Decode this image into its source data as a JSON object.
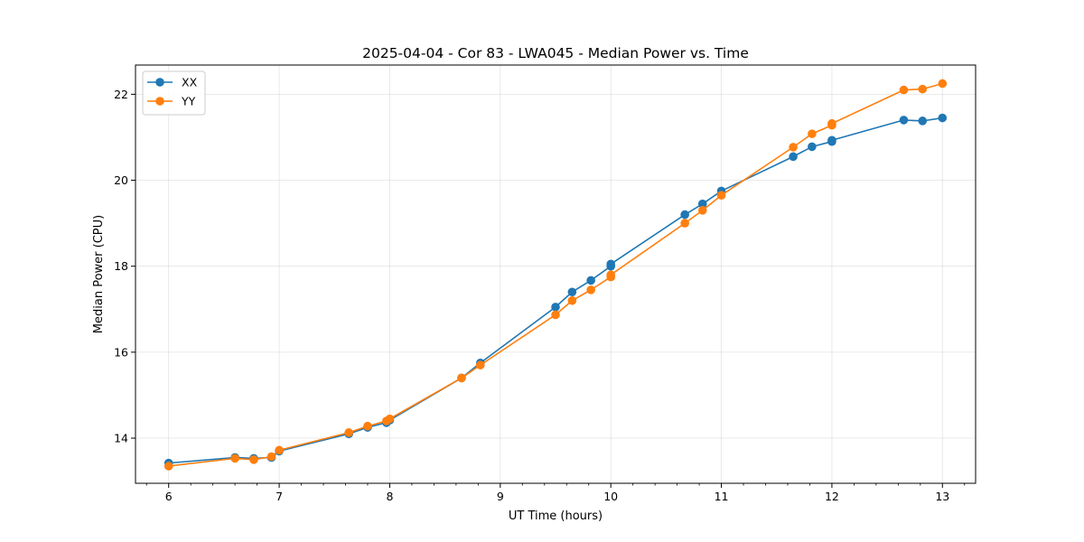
{
  "chart_data": {
    "type": "line",
    "title": "2025-04-04 - Cor 83 - LWA045 - Median Power vs. Time",
    "xlabel": "UT Time (hours)",
    "ylabel": "Median Power (CPU)",
    "xlim": [
      5.7,
      13.3
    ],
    "ylim": [
      12.95,
      22.68
    ],
    "xticks": [
      6,
      7,
      8,
      9,
      10,
      11,
      12,
      13
    ],
    "yticks": [
      14,
      16,
      18,
      20,
      22
    ],
    "grid": true,
    "legend_position": "top-left",
    "series": [
      {
        "name": "XX",
        "color": "#1f77b4",
        "x": [
          6.0,
          6.6,
          6.77,
          6.93,
          7.0,
          7.63,
          7.8,
          7.97,
          8.0,
          8.65,
          8.82,
          9.5,
          9.65,
          9.82,
          10.0,
          10.0,
          10.67,
          10.83,
          11.0,
          11.65,
          11.82,
          12.0,
          12.0,
          12.65,
          12.82,
          13.0
        ],
        "y": [
          13.42,
          13.55,
          13.53,
          13.55,
          13.7,
          14.1,
          14.25,
          14.36,
          14.42,
          15.4,
          15.75,
          17.05,
          17.4,
          17.67,
          18.0,
          18.05,
          19.2,
          19.45,
          19.75,
          20.55,
          20.78,
          20.9,
          20.93,
          21.4,
          21.38,
          21.45
        ]
      },
      {
        "name": "YY",
        "color": "#ff7f0e",
        "x": [
          6.0,
          6.6,
          6.77,
          6.93,
          7.0,
          7.63,
          7.8,
          7.97,
          8.0,
          8.65,
          8.82,
          9.5,
          9.65,
          9.82,
          10.0,
          10.0,
          10.67,
          10.83,
          11.0,
          11.65,
          11.82,
          12.0,
          12.0,
          12.65,
          12.82,
          13.0
        ],
        "y": [
          13.35,
          13.53,
          13.5,
          13.57,
          13.72,
          14.13,
          14.28,
          14.4,
          14.45,
          15.4,
          15.7,
          16.87,
          17.2,
          17.45,
          17.75,
          17.8,
          19.0,
          19.3,
          19.65,
          20.77,
          21.08,
          21.28,
          21.32,
          22.1,
          22.12,
          22.25
        ]
      }
    ]
  }
}
